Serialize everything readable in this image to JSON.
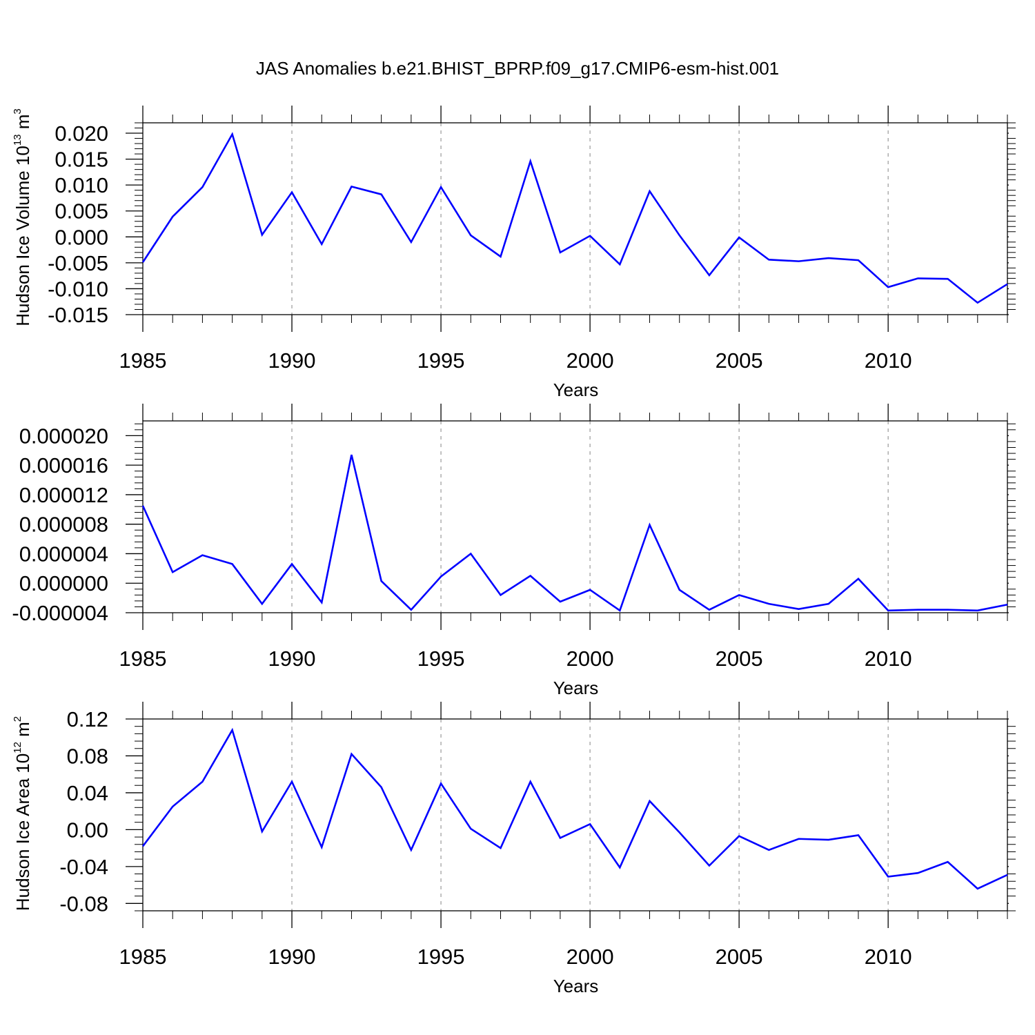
{
  "title": "JAS Anomalies b.e21.BHIST_BPRP.f09_g17.CMIP6-esm-hist.001",
  "colors": {
    "line": "#0000ff",
    "frame": "#000000",
    "grid": "#999999"
  },
  "chart_data": [
    {
      "type": "line",
      "title": "JAS Anomalies b.e21.BHIST_BPRP.f09_g17.CMIP6-esm-hist.001",
      "xlabel": "Years",
      "ylabel": {
        "text": "Hudson Ice Volume 10",
        "sup1": "13",
        "unit": " m",
        "sup2": "3"
      },
      "xlim": [
        1985,
        2014
      ],
      "ylim": [
        -0.015,
        0.022
      ],
      "xticks": [
        1985,
        1990,
        1995,
        2000,
        2005,
        2010
      ],
      "yticks": [
        -0.015,
        -0.01,
        -0.005,
        0.0,
        0.005,
        0.01,
        0.015,
        0.02
      ],
      "ytick_labels": [
        "-0.015",
        "-0.010",
        "-0.005",
        "0.000",
        "0.005",
        "0.010",
        "0.015",
        "0.020"
      ],
      "grid": "vertical dashed",
      "x": [
        1985,
        1986,
        1987,
        1988,
        1989,
        1990,
        1991,
        1992,
        1993,
        1994,
        1995,
        1996,
        1997,
        1998,
        1999,
        2000,
        2001,
        2002,
        2003,
        2004,
        2005,
        2006,
        2007,
        2008,
        2009,
        2010,
        2011,
        2012,
        2013,
        2014
      ],
      "series": [
        {
          "values": [
            -0.0049,
            0.0039,
            0.0096,
            0.0198,
            0.0004,
            0.0086,
            -0.0014,
            0.0097,
            0.0082,
            -0.001,
            0.0096,
            0.0003,
            -0.0038,
            0.0146,
            -0.003,
            0.0002,
            -0.0053,
            0.0088,
            0.0003,
            -0.0074,
            -0.0001,
            -0.0044,
            -0.0047,
            -0.0041,
            -0.0045,
            -0.0097,
            -0.008,
            -0.0081,
            -0.0127,
            -0.0091
          ]
        }
      ]
    },
    {
      "type": "line",
      "xlabel": "Years",
      "ylabel": "",
      "xlim": [
        1985,
        2014
      ],
      "ylim": [
        -4e-06,
        2.2e-05
      ],
      "xticks": [
        1985,
        1990,
        1995,
        2000,
        2005,
        2010
      ],
      "yticks": [
        -4e-06,
        0.0,
        4e-06,
        8e-06,
        1.2e-05,
        1.6e-05,
        2e-05
      ],
      "ytick_labels": [
        "-0.000004",
        "0.000000",
        "0.000004",
        "0.000008",
        "0.000012",
        "0.000016",
        "0.000020"
      ],
      "grid": "vertical dashed",
      "x": [
        1985,
        1986,
        1987,
        1988,
        1989,
        1990,
        1991,
        1992,
        1993,
        1994,
        1995,
        1996,
        1997,
        1998,
        1999,
        2000,
        2001,
        2002,
        2003,
        2004,
        2005,
        2006,
        2007,
        2008,
        2009,
        2010,
        2011,
        2012,
        2013,
        2014
      ],
      "series": [
        {
          "values": [
            1.05e-05,
            1.5e-06,
            3.8e-06,
            2.6e-06,
            -2.8e-06,
            2.6e-06,
            -2.6e-06,
            1.74e-05,
            3e-07,
            -3.6e-06,
            9e-07,
            4e-06,
            -1.6e-06,
            1e-06,
            -2.5e-06,
            -9e-07,
            -3.7e-06,
            7.9e-06,
            -9e-07,
            -3.6e-06,
            -1.6e-06,
            -2.8e-06,
            -3.5e-06,
            -2.8e-06,
            6e-07,
            -3.7e-06,
            -3.6e-06,
            -3.6e-06,
            -3.7e-06,
            -2.9e-06
          ]
        }
      ]
    },
    {
      "type": "line",
      "xlabel": "Years",
      "ylabel": {
        "text": "Hudson Ice Area 10",
        "sup1": "12",
        "unit": " m",
        "sup2": "2"
      },
      "xlim": [
        1985,
        2014
      ],
      "ylim": [
        -0.088,
        0.12
      ],
      "xticks": [
        1985,
        1990,
        1995,
        2000,
        2005,
        2010
      ],
      "yticks": [
        -0.08,
        -0.04,
        0.0,
        0.04,
        0.08,
        0.12
      ],
      "ytick_labels": [
        "-0.08",
        "-0.04",
        "0.00",
        "0.04",
        "0.08",
        "0.12"
      ],
      "grid": "vertical dashed",
      "x": [
        1985,
        1986,
        1987,
        1988,
        1989,
        1990,
        1991,
        1992,
        1993,
        1994,
        1995,
        1996,
        1997,
        1998,
        1999,
        2000,
        2001,
        2002,
        2003,
        2004,
        2005,
        2006,
        2007,
        2008,
        2009,
        2010,
        2011,
        2012,
        2013,
        2014
      ],
      "series": [
        {
          "values": [
            -0.018,
            0.025,
            0.052,
            0.108,
            -0.002,
            0.052,
            -0.019,
            0.082,
            0.046,
            -0.022,
            0.05,
            0.001,
            -0.02,
            0.052,
            -0.009,
            0.006,
            -0.041,
            0.031,
            -0.003,
            -0.039,
            -0.007,
            -0.022,
            -0.01,
            -0.011,
            -0.006,
            -0.051,
            -0.047,
            -0.035,
            -0.064,
            -0.049
          ]
        }
      ]
    }
  ]
}
